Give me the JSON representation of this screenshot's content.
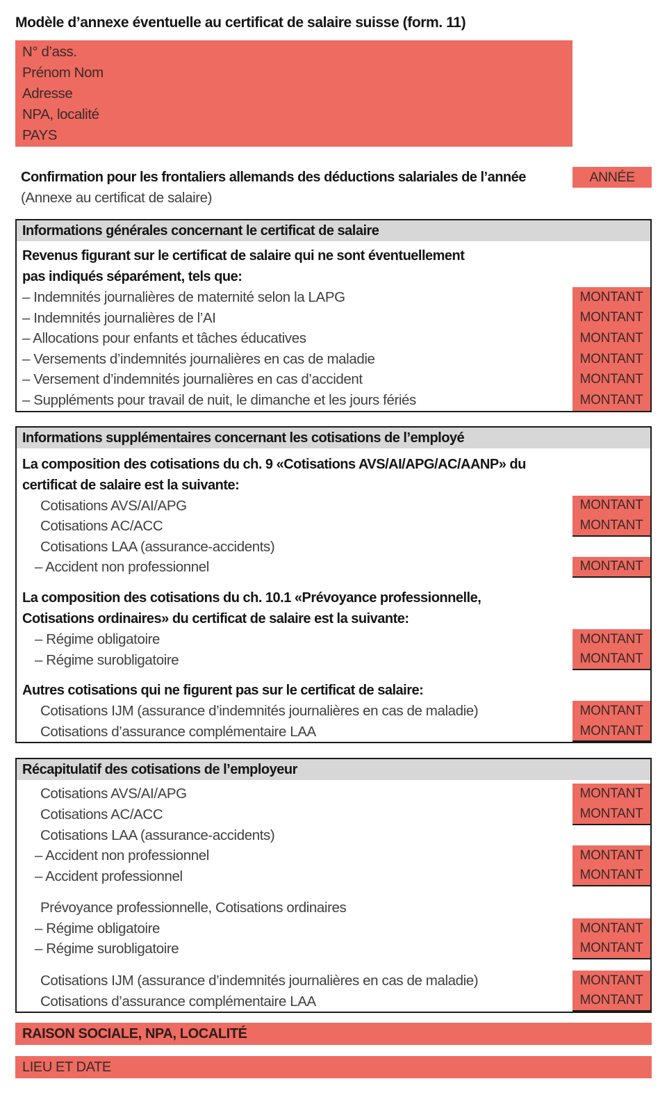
{
  "colors": {
    "accent": "#ee6b61",
    "header_bg": "#d7d7d7",
    "border": "#1b1b1b",
    "text": "#3f3f3f",
    "text_strong": "#151515",
    "text_on_accent": "#3b2a27",
    "text_strong_on_accent": "#2e1c1a"
  },
  "doc": {
    "title": "Modèle d’annexe éventuelle au certificat de salaire suisse (form. 11)"
  },
  "address_box": {
    "lines": [
      "N° d’ass.",
      "Prénom Nom",
      "Adresse",
      "NPA, localité",
      "PAYS"
    ]
  },
  "confirmation": {
    "line1": "Confirmation pour les frontaliers allemands des déductions salariales de l’année",
    "line2": "(Annexe au certificat de salaire)",
    "year": "ANNÉE"
  },
  "section_general": {
    "header": "Informations générales concernant le certificat de salaire",
    "intro1": "Revenus figurant sur le certificat de salaire qui ne sont éventuellement",
    "intro2": "pas indiqués séparément, tels que:",
    "items": [
      {
        "label": "– Indemnités journalières de maternité selon la LAPG",
        "amount": "MONTANT"
      },
      {
        "label": "– Indemnités journalières de l’AI",
        "amount": "MONTANT"
      },
      {
        "label": "– Allocations pour enfants et tâches éducatives",
        "amount": "MONTANT"
      },
      {
        "label": "– Versements d’indemnités journalières en cas de maladie",
        "amount": "MONTANT"
      },
      {
        "label": "– Versement d’indemnités journalières en cas d’accident",
        "amount": "MONTANT"
      },
      {
        "label": "– Suppléments pour travail de nuit, le dimanche et les jours fériés",
        "amount": "MONTANT"
      }
    ]
  },
  "section_employee": {
    "header": "Informations supplémentaires concernant les cotisations de l’employé",
    "ch9": {
      "intro1": "La composition des cotisations du ch. 9 «Cotisations AVS/AI/APG/AC/AANP» du",
      "intro2": "certificat de salaire est la suivante:",
      "items": [
        {
          "label": "Cotisations AVS/AI/APG",
          "amount": "MONTANT"
        },
        {
          "label": "Cotisations AC/ACC",
          "amount": "MONTANT"
        },
        {
          "label": "Cotisations LAA (assurance-accidents)"
        },
        {
          "label": "– Accident non professionnel",
          "amount": "MONTANT"
        }
      ]
    },
    "ch101": {
      "intro1": "La composition des cotisations du ch. 10.1 «Prévoyance professionnelle,",
      "intro2": "Cotisations ordinaires» du certificat de salaire est la suivante:",
      "items": [
        {
          "label": "– Régime obligatoire",
          "amount": "MONTANT"
        },
        {
          "label": "– Régime surobligatoire",
          "amount": "MONTANT"
        }
      ]
    },
    "other": {
      "intro": "Autres cotisations qui ne figurent pas sur le certificat de salaire:",
      "items": [
        {
          "label": "Cotisations IJM (assurance d’indemnités journalières en cas de maladie)",
          "amount": "MONTANT"
        },
        {
          "label": "Cotisations d’assurance complémentaire LAA",
          "amount": "MONTANT"
        }
      ]
    }
  },
  "section_employer": {
    "header": "Récapitulatif des cotisations de l’employeur",
    "items": [
      {
        "label": "Cotisations AVS/AI/APG",
        "amount": "MONTANT"
      },
      {
        "label": "Cotisations AC/ACC",
        "amount": "MONTANT"
      },
      {
        "label": "Cotisations LAA (assurance-accidents)"
      },
      {
        "label": "– Accident non professionnel",
        "amount": "MONTANT"
      },
      {
        "label": "– Accident professionnel",
        "amount": "MONTANT"
      },
      {
        "label": "Prévoyance professionnelle, Cotisations ordinaires"
      },
      {
        "label": "– Régime obligatoire",
        "amount": "MONTANT"
      },
      {
        "label": "– Régime surobligatoire",
        "amount": "MONTANT"
      },
      {
        "label": "Cotisations IJM (assurance d’indemnités journalières en cas de maladie)",
        "amount": "MONTANT"
      },
      {
        "label": "Cotisations d’assurance complémentaire LAA",
        "amount": "MONTANT"
      }
    ]
  },
  "footer": {
    "company": "RAISON SOCIALE, NPA, LOCALITÉ",
    "place_date": "LIEU ET DATE"
  }
}
